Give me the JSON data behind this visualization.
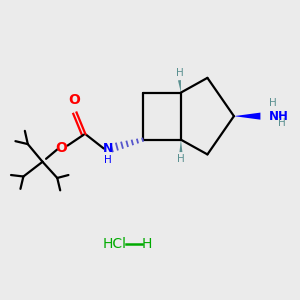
{
  "background_color": "#ebebeb",
  "fig_width": 3.0,
  "fig_height": 3.0,
  "dpi": 100,
  "xlim": [
    0,
    10
  ],
  "ylim": [
    0,
    10
  ],
  "bond_color": "#000000",
  "oxygen_color": "#ff0000",
  "nitrogen_color": "#0000ff",
  "stereo_h_color": "#5a9090",
  "nh2_color": "#0000ff",
  "hcl_color": "#00aa00",
  "wedge_blue_color": "#0000ff",
  "tbu_color": "#000000",
  "hcl_text": "HCl",
  "h_text": "H"
}
